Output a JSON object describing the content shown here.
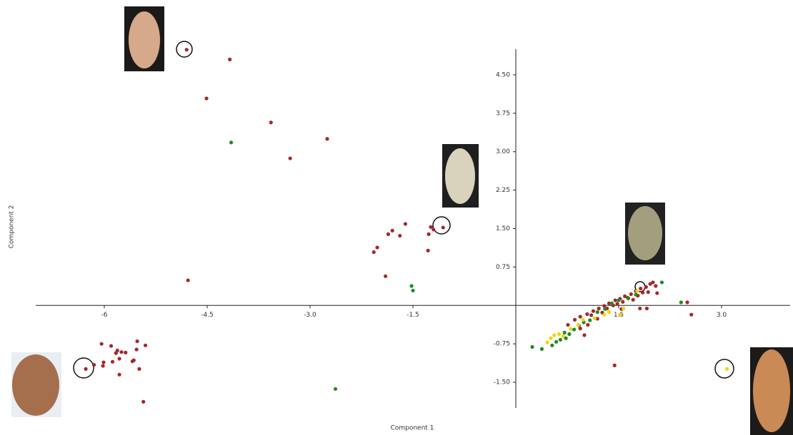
{
  "chart_data": {
    "type": "scatter",
    "x_label": "Component 1",
    "y_label": "Component 2",
    "xlim": [
      -7,
      4
    ],
    "ylim": [
      -2,
      5
    ],
    "xticks": [
      -6,
      -4.5,
      {
        "value": -3,
        "label": "-3.0"
      },
      -1.5,
      1.5,
      {
        "value": 3,
        "label": "3.0"
      }
    ],
    "yticks": [
      {
        "value": -1.5,
        "label": "-1.50"
      },
      -0.75,
      0.75,
      {
        "value": 1.5,
        "label": "1.50"
      },
      2.25,
      {
        "value": 3,
        "label": "3.00"
      },
      3.75,
      {
        "value": 4.5,
        "label": "4.50"
      }
    ],
    "grid": false,
    "series": [
      {
        "color": "#a3282a",
        "x": [
          -4.8,
          -4.17,
          -4.51,
          -3.57,
          -2.75,
          -3.29,
          -4.78,
          -1.61,
          -1.8,
          -1.86,
          -1.69,
          -2.02,
          -2.07,
          -1.27,
          -1.24,
          -1.2,
          -1.06,
          -1.28,
          -1.9,
          -6.27,
          -6.15,
          -6.04,
          -6.01,
          -6.02,
          -5.9,
          -5.83,
          -5.88,
          -5.81,
          -5.78,
          -5.75,
          -5.69,
          -5.78,
          -5.59,
          -5.52,
          -5.57,
          -5.53,
          -5.49,
          -5.4,
          -5.43,
          1.44,
          2.56,
          2.5,
          0.76,
          0.86,
          0.94,
          1.0,
          1.04,
          1.1,
          1.13,
          1.19,
          1.21,
          1.26,
          1.29,
          1.33,
          1.36,
          1.42,
          1.45,
          1.48,
          1.52,
          1.56,
          1.59,
          1.64,
          1.68,
          1.71,
          1.75,
          1.78,
          1.82,
          1.85,
          1.9,
          1.93,
          1.96,
          2.0,
          2.04,
          1.91,
          2.06,
          1.05,
          0.94,
          1.54,
          1.81
        ],
        "values": [
          4.99,
          4.8,
          4.04,
          3.57,
          3.25,
          2.87,
          0.49,
          1.59,
          1.46,
          1.39,
          1.36,
          1.13,
          1.04,
          1.39,
          1.53,
          1.48,
          1.52,
          1.07,
          0.57,
          -1.24,
          -1.16,
          -0.75,
          -1.11,
          -1.18,
          -0.79,
          -0.93,
          -1.1,
          -0.88,
          -1.04,
          -0.91,
          -0.92,
          -1.35,
          -1.09,
          -0.7,
          -1.07,
          -0.86,
          -1.24,
          -0.78,
          -1.88,
          -1.17,
          -0.18,
          0.06,
          -0.38,
          -0.28,
          -0.22,
          -0.58,
          -0.17,
          -0.19,
          -0.11,
          -0.26,
          -0.06,
          -0.14,
          -0.01,
          -0.06,
          0.04,
          0.0,
          0.1,
          0.03,
          0.13,
          0.07,
          0.18,
          0.14,
          0.22,
          0.11,
          0.28,
          0.19,
          0.33,
          0.25,
          0.36,
          0.26,
          0.42,
          0.45,
          0.38,
          -0.06,
          0.24,
          -0.38,
          -0.45,
          -0.07,
          -0.06
        ]
      },
      {
        "color": "#1f8a1f",
        "x": [
          -4.15,
          -1.52,
          -1.5,
          -2.63,
          0.24,
          0.38,
          0.53,
          0.65,
          0.71,
          0.78,
          0.85,
          0.92,
          0.99,
          1.08,
          1.19,
          1.3,
          1.4,
          1.5,
          1.63,
          1.75,
          2.13,
          2.41,
          0.59,
          0.73
        ],
        "values": [
          3.18,
          0.38,
          0.29,
          -1.63,
          -0.81,
          -0.85,
          -0.78,
          -0.67,
          -0.53,
          -0.56,
          -0.47,
          -0.39,
          -0.33,
          -0.29,
          -0.13,
          -0.07,
          0.04,
          0.1,
          0.15,
          0.21,
          0.45,
          0.06,
          -0.71,
          -0.64
        ]
      },
      {
        "color": "#f2d30f",
        "x": [
          3.08,
          0.46,
          0.51,
          0.56,
          0.63,
          0.69,
          0.8,
          0.91,
          0.98,
          1.15,
          1.29,
          1.36,
          1.57,
          1.52,
          1.77
        ],
        "values": [
          -1.24,
          -0.72,
          -0.64,
          -0.58,
          -0.56,
          -0.6,
          -0.46,
          -0.38,
          -0.28,
          -0.25,
          -0.18,
          -0.13,
          -0.06,
          -0.18,
          0.28
        ]
      }
    ]
  }
}
